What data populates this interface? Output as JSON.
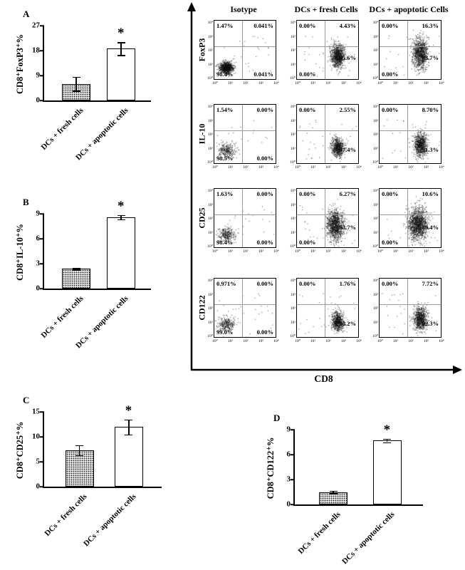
{
  "colors": {
    "ink": "#000000",
    "bar_open_fill": "#ffffff",
    "bar_hatched_fill": "#e0e0e0"
  },
  "chart_data": [
    {
      "panel_letter": "A",
      "type": "bar",
      "ylabel": "CD8⁺FoxP3⁺%",
      "categories": [
        "DCs + fresh cells",
        "DCs + apoptotic cells"
      ],
      "values": [
        6.0,
        18.7
      ],
      "errors": [
        2.5,
        2.3
      ],
      "yticks": [
        0,
        9,
        18,
        27
      ],
      "ylim": [
        0,
        27
      ],
      "significance": [
        "",
        "*"
      ],
      "bar_styles": [
        "hatched",
        "open"
      ]
    },
    {
      "panel_letter": "B",
      "type": "bar",
      "ylabel": "CD8⁺IL-10⁺%",
      "categories": [
        "DCs + fresh cells",
        "DCs + apoptotic cells"
      ],
      "values": [
        2.4,
        8.6
      ],
      "errors": [
        0.12,
        0.25
      ],
      "yticks": [
        0,
        3,
        6,
        9
      ],
      "ylim": [
        0,
        9
      ],
      "significance": [
        "",
        "*"
      ],
      "bar_styles": [
        "hatched",
        "open"
      ]
    },
    {
      "panel_letter": "C",
      "type": "bar",
      "ylabel": "CD8⁺CD25⁺%",
      "categories": [
        "DCs + fresh cells",
        "DCs + apoptotic cells"
      ],
      "values": [
        7.3,
        12.0
      ],
      "errors": [
        1.0,
        1.5
      ],
      "yticks": [
        0,
        5,
        10,
        15
      ],
      "ylim": [
        0,
        15
      ],
      "significance": [
        "",
        "*"
      ],
      "bar_styles": [
        "hatched",
        "open"
      ]
    },
    {
      "panel_letter": "D",
      "type": "bar",
      "ylabel": "CD8⁺CD122⁺%",
      "categories": [
        "DCs + fresh cells",
        "DCs + apoptotic cells"
      ],
      "values": [
        1.5,
        7.7
      ],
      "errors": [
        0.15,
        0.2
      ],
      "yticks": [
        0,
        3,
        6,
        9
      ],
      "ylim": [
        0,
        9
      ],
      "significance": [
        "",
        "*"
      ],
      "bar_styles": [
        "hatched",
        "open"
      ]
    },
    {
      "type": "scatter",
      "subtype": "flow-cytometry-grid",
      "xlabel": "CD8",
      "columns": [
        "Isotype",
        "DCs + fresh Cells",
        "DCs + apoptotic Cells"
      ],
      "rows": [
        "FoxP3",
        "IL-10",
        "CD25",
        "CD122"
      ],
      "axis_ticks": [
        "10⁰",
        "10¹",
        "10²",
        "10³",
        "10⁴"
      ],
      "plots": [
        {
          "row": "FoxP3",
          "col": "Isotype",
          "ul": "1.47%",
          "ur": "0.041%",
          "ll": "98.4%",
          "lr": "0.041%",
          "cluster": "dense-lower-left"
        },
        {
          "row": "FoxP3",
          "col": "DCs + fresh Cells",
          "ul": "0.00%",
          "ur": "4.43%",
          "ll": "0.00%",
          "lr": "95.6%",
          "cluster": "mid-right"
        },
        {
          "row": "FoxP3",
          "col": "DCs + apoptotic Cells",
          "ul": "0.00%",
          "ur": "16.3%",
          "ll": "0.00%",
          "lr": "83.7%",
          "cluster": "mid-right-tall"
        },
        {
          "row": "IL-10",
          "col": "Isotype",
          "ul": "1.54%",
          "ur": "0.00%",
          "ll": "98.5%",
          "lr": "0.00%",
          "cluster": "sparse-lower-left"
        },
        {
          "row": "IL-10",
          "col": "DCs + fresh Cells",
          "ul": "0.00%",
          "ur": "2.55%",
          "ll": "",
          "lr": "97.4%",
          "cluster": "lower-right"
        },
        {
          "row": "IL-10",
          "col": "DCs + apoptotic Cells",
          "ul": "0.00%",
          "ur": "8.70%",
          "ll": "",
          "lr": "91.3%",
          "cluster": "lower-right-tall"
        },
        {
          "row": "CD25",
          "col": "Isotype",
          "ul": "1.63%",
          "ur": "0.00%",
          "ll": "98.4%",
          "lr": "0.00%",
          "cluster": "sparse-lower-left"
        },
        {
          "row": "CD25",
          "col": "DCs + fresh Cells",
          "ul": "0.00%",
          "ur": "6.27%",
          "ll": "0.00%",
          "lr": "93.7%",
          "cluster": "tall-right"
        },
        {
          "row": "CD25",
          "col": "DCs + apoptotic Cells",
          "ul": "0.00%",
          "ur": "10.6%",
          "ll": "0.00%",
          "lr": "89.4%",
          "cluster": "tall-right-big"
        },
        {
          "row": "CD122",
          "col": "Isotype",
          "ul": "0.971%",
          "ur": "0.00%",
          "ll": "99.0%",
          "lr": "0.00%",
          "cluster": "sparse-lower-left"
        },
        {
          "row": "CD122",
          "col": "DCs + fresh Cells",
          "ul": "0.00%",
          "ur": "1.76%",
          "ll": "",
          "lr": "98.2%",
          "cluster": "lower-right"
        },
        {
          "row": "CD122",
          "col": "DCs + apoptotic Cells",
          "ul": "0.00%",
          "ur": "7.72%",
          "ll": "",
          "lr": "92.3%",
          "cluster": "lower-right-tall"
        }
      ]
    }
  ]
}
